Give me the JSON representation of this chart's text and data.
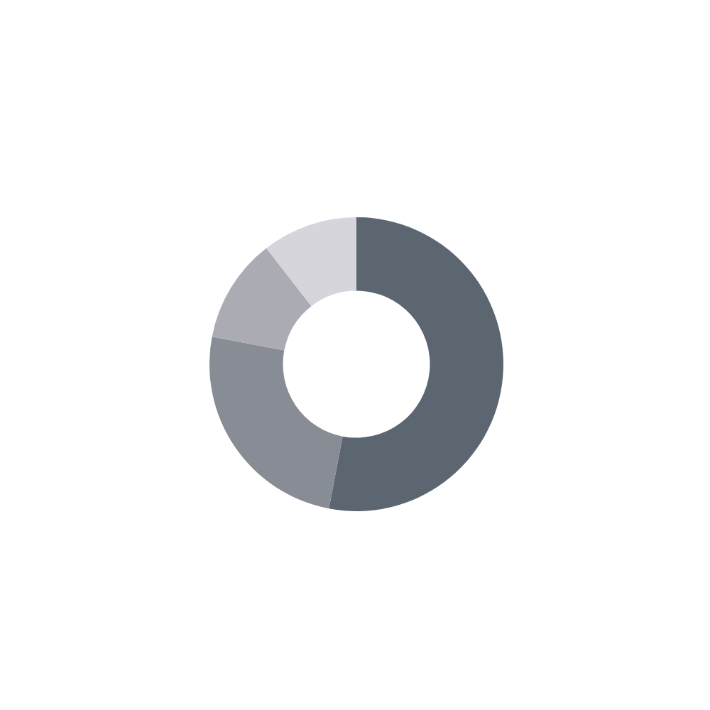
{
  "chart_data": {
    "type": "donut",
    "categories": [
      null,
      null,
      null,
      null
    ],
    "values": [
      53,
      25,
      11.5,
      10.5
    ],
    "colors": [
      "#5b6670",
      "#878c95",
      "#aaabb3",
      "#d7d5dc"
    ]
  }
}
